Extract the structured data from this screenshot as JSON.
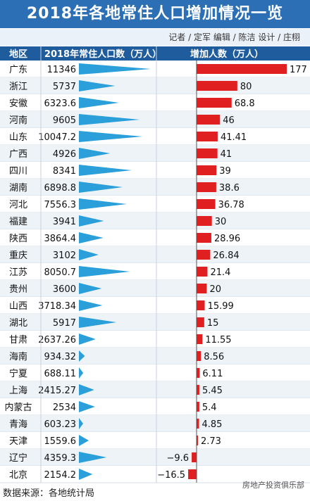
{
  "title": "2018年各地常住人口增加情况一览",
  "credits": "记者 / 定军  编辑 / 陈洁  设计 / 庄栩",
  "source": "数据来源：各地统计局",
  "watermark": "房地产投资俱乐部",
  "colors": {
    "header": "#1f5c9e",
    "title_bg": "#2d6fb5",
    "pop_bar": "#2b9fd9",
    "inc_bar": "#e02020",
    "row_alt": "#eef3f8"
  },
  "chart_data": {
    "type": "bar",
    "columns": [
      "地区",
      "2018年常住人口数（万人）",
      "增加人数（万人）"
    ],
    "categories": [
      "广东",
      "浙江",
      "安徽",
      "河南",
      "山东",
      "广西",
      "四川",
      "湖南",
      "河北",
      "福建",
      "陕西",
      "重庆",
      "江苏",
      "贵州",
      "山西",
      "湖北",
      "甘肃",
      "海南",
      "宁夏",
      "上海",
      "内蒙古",
      "青海",
      "天津",
      "辽宁",
      "北京"
    ],
    "population_labels": [
      "11346",
      "5737",
      "6323.6",
      "9605",
      "10047.2",
      "4926",
      "8341",
      "6898.8",
      "7556.3",
      "3941",
      "3864.4",
      "3102",
      "8050.7",
      "3600",
      "3718.34",
      "5917",
      "2637.26",
      "934.32",
      "688.11",
      "2415.27",
      "2534",
      "603.23",
      "1559.6",
      "4359.3",
      "2154.2"
    ],
    "population": [
      11346,
      5737,
      6323.6,
      9605,
      10047.2,
      4926,
      8341,
      6898.8,
      7556.3,
      3941,
      3864.4,
      3102,
      8050.7,
      3600,
      3718.34,
      5917,
      2637.26,
      934.32,
      688.11,
      2415.27,
      2534,
      603.23,
      1559.6,
      4359.3,
      2154.2
    ],
    "increase_labels": [
      "177",
      "80",
      "68.8",
      "46",
      "41.41",
      "41",
      "39",
      "38.6",
      "36.78",
      "30",
      "28.96",
      "26.84",
      "21.4",
      "20",
      "15.99",
      "15",
      "11.55",
      "8.56",
      "6.11",
      "5.45",
      "5.4",
      "4.85",
      "2.73",
      "−9.6",
      "−16.5"
    ],
    "increase": [
      177,
      80,
      68.8,
      46,
      41.41,
      41,
      39,
      38.6,
      36.78,
      30,
      28.96,
      26.84,
      21.4,
      20,
      15.99,
      15,
      11.55,
      8.56,
      6.11,
      5.45,
      5.4,
      4.85,
      2.73,
      -9.6,
      -16.5
    ]
  }
}
